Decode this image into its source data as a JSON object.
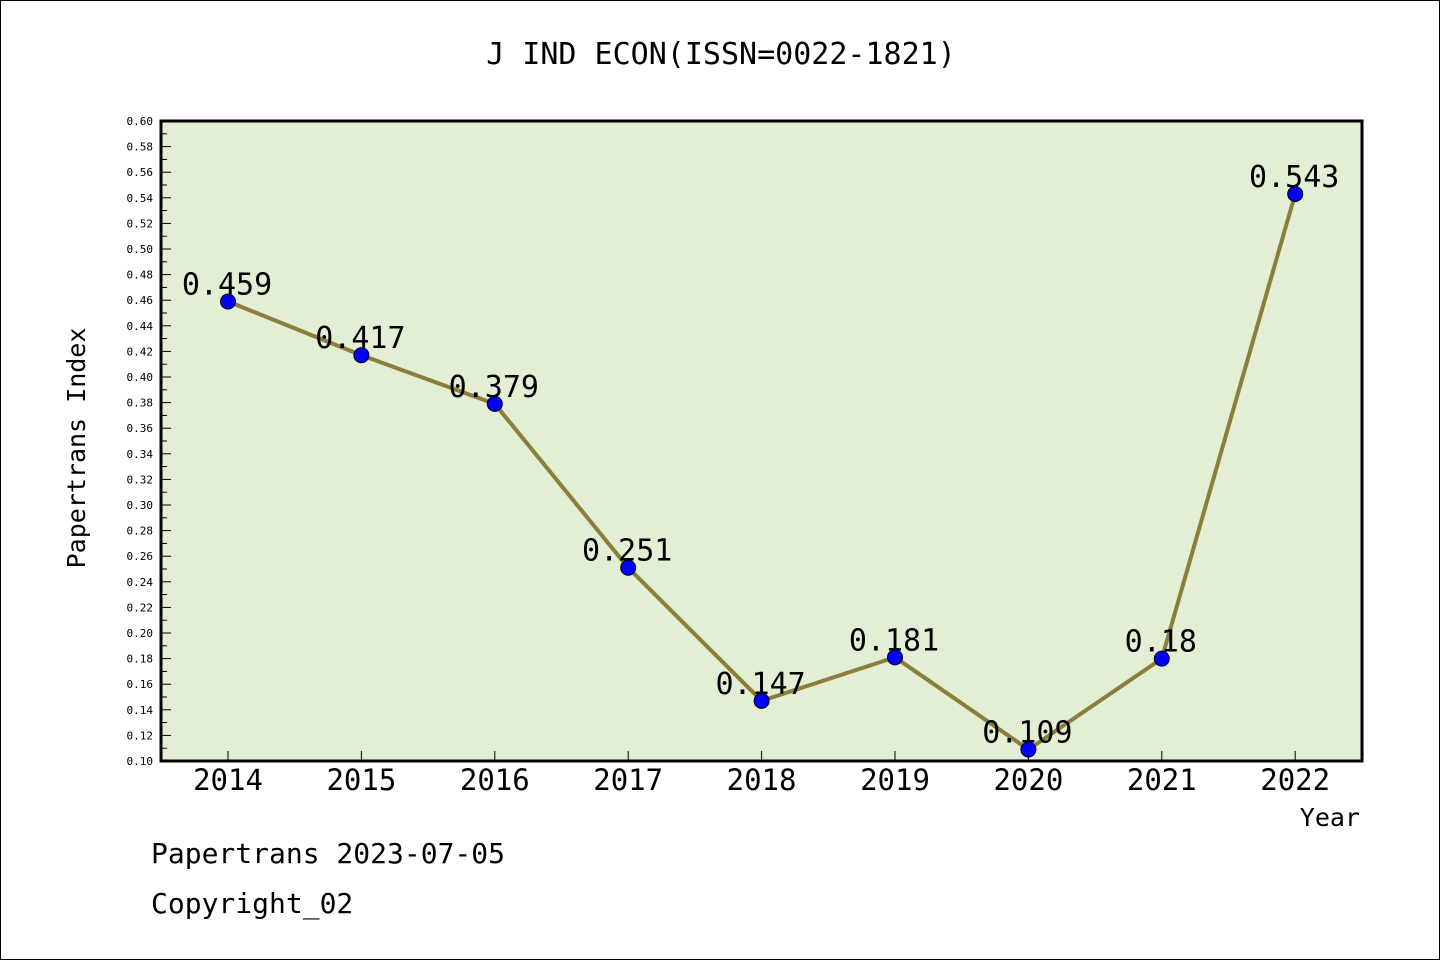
{
  "chart_data": {
    "type": "line",
    "title": "J IND ECON(ISSN=0022-1821)",
    "xlabel": "Year",
    "ylabel": "Papertrans Index",
    "categories": [
      "2014",
      "2015",
      "2016",
      "2017",
      "2018",
      "2019",
      "2020",
      "2021",
      "2022"
    ],
    "series": [
      {
        "values": [
          0.459,
          0.417,
          0.379,
          0.251,
          0.147,
          0.181,
          0.109,
          0.18,
          0.543
        ],
        "data_labels": [
          "0.459",
          "0.417",
          "0.379",
          "0.251",
          "0.147",
          "0.181",
          "0.109",
          "0.18",
          "0.543"
        ]
      }
    ],
    "ylim": [
      0.1,
      0.6
    ],
    "y_ticks": [
      "0.10",
      "0.12",
      "0.14",
      "0.16",
      "0.18",
      "0.20",
      "0.22",
      "0.24",
      "0.26",
      "0.28",
      "0.30",
      "0.32",
      "0.34",
      "0.36",
      "0.38",
      "0.40",
      "0.42",
      "0.44",
      "0.46",
      "0.48",
      "0.50",
      "0.52",
      "0.54",
      "0.56",
      "0.58",
      "0.60"
    ],
    "grid": false,
    "legend": "none",
    "colors": {
      "plot_background": "#e2efd4",
      "line": "#8b7d3a",
      "marker": "#0000ff"
    }
  },
  "footer": {
    "date_text": "Papertrans 2023-07-05",
    "copyright_text": "Copyright_02"
  }
}
